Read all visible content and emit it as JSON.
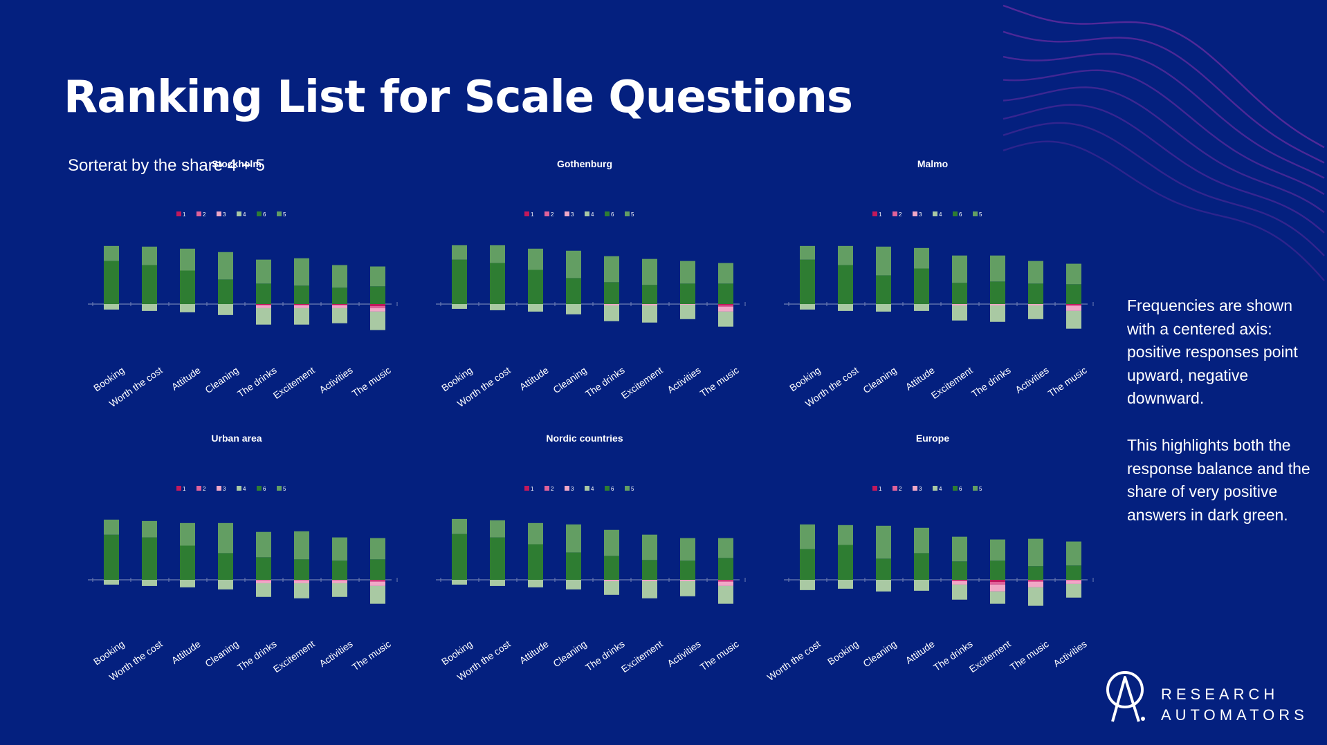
{
  "title": "Ranking List for Scale Questions",
  "subtitle": "Sorterat by the share 4 + 5",
  "side_note": {
    "p1": "Frequencies are shown with a centered axis: positive responses point upward, negative downward.",
    "p2": "This highlights both the response balance and the share of very positive answers in dark green."
  },
  "logo": {
    "line1": "RESEARCH",
    "line2": "AUTOMATORS"
  },
  "colors": {
    "background": "#04207f",
    "s1": "#c2185b",
    "s2": "#e0629a",
    "s3": "#f0a8c6",
    "s4": "#a9c9a3",
    "s6": "#2e7d32",
    "s5": "#639e63",
    "axis": "#6f7fb5",
    "wave": "#5a2a9c"
  },
  "chart_data": [
    {
      "type": "bar",
      "title": "Stockholm",
      "legend": [
        "1",
        "2",
        "3",
        "4",
        "6",
        "5"
      ],
      "categories": [
        "Booking",
        "Worth the cost",
        "Attitude",
        "Cleaning",
        "The drinks",
        "Excitement",
        "Activities",
        "The music"
      ],
      "series": [
        {
          "name": "6",
          "values": [
            63,
            57,
            49,
            36,
            30,
            27,
            24,
            26
          ]
        },
        {
          "name": "5",
          "values": [
            22,
            27,
            32,
            40,
            35,
            40,
            33,
            29
          ]
        },
        {
          "name": "4",
          "values": [
            -8,
            -10,
            -12,
            -16,
            -24,
            -24,
            -22,
            -27
          ]
        },
        {
          "name": "3",
          "values": [
            0,
            0,
            0,
            0,
            -4,
            -4,
            -4,
            -5
          ]
        },
        {
          "name": "2",
          "values": [
            0,
            0,
            0,
            0,
            -1,
            -1,
            -1,
            -3
          ]
        },
        {
          "name": "1",
          "values": [
            0,
            0,
            0,
            0,
            -1,
            -1,
            -1,
            -3
          ]
        }
      ]
    },
    {
      "type": "bar",
      "title": "Gothenburg",
      "legend": [
        "1",
        "2",
        "3",
        "4",
        "6",
        "5"
      ],
      "categories": [
        "Booking",
        "Worth the cost",
        "Attitude",
        "Cleaning",
        "The drinks",
        "Excitement",
        "Activities",
        "The music"
      ],
      "series": [
        {
          "name": "6",
          "values": [
            65,
            60,
            50,
            38,
            32,
            28,
            30,
            30
          ]
        },
        {
          "name": "5",
          "values": [
            21,
            26,
            31,
            40,
            38,
            38,
            33,
            30
          ]
        },
        {
          "name": "4",
          "values": [
            -7,
            -9,
            -11,
            -15,
            -23,
            -25,
            -21,
            -22
          ]
        },
        {
          "name": "3",
          "values": [
            0,
            0,
            0,
            0,
            -2,
            -2,
            -1,
            -7
          ]
        },
        {
          "name": "2",
          "values": [
            0,
            0,
            0,
            0,
            0,
            0,
            0,
            -2
          ]
        },
        {
          "name": "1",
          "values": [
            0,
            0,
            0,
            0,
            0,
            0,
            0,
            -2
          ]
        }
      ]
    },
    {
      "type": "bar",
      "title": "Malmo",
      "legend": [
        "1",
        "2",
        "3",
        "4",
        "6",
        "5"
      ],
      "categories": [
        "Booking",
        "Worth the cost",
        "Cleaning",
        "Attitude",
        "Excitement",
        "The drinks",
        "Activities",
        "The music"
      ],
      "series": [
        {
          "name": "6",
          "values": [
            65,
            57,
            42,
            52,
            31,
            33,
            30,
            29
          ]
        },
        {
          "name": "5",
          "values": [
            20,
            28,
            42,
            30,
            40,
            38,
            33,
            30
          ]
        },
        {
          "name": "4",
          "values": [
            -8,
            -10,
            -11,
            -10,
            -22,
            -24,
            -20,
            -26
          ]
        },
        {
          "name": "3",
          "values": [
            0,
            0,
            0,
            0,
            -2,
            -2,
            -2,
            -7
          ]
        },
        {
          "name": "2",
          "values": [
            0,
            0,
            0,
            0,
            0,
            0,
            0,
            -2
          ]
        },
        {
          "name": "1",
          "values": [
            0,
            0,
            0,
            0,
            0,
            0,
            0,
            -1
          ]
        }
      ]
    },
    {
      "type": "bar",
      "title": "Urban area",
      "legend": [
        "1",
        "2",
        "3",
        "4",
        "6",
        "5"
      ],
      "categories": [
        "Booking",
        "Worth the cost",
        "Attitude",
        "Cleaning",
        "The drinks",
        "Excitement",
        "Activities",
        "The music"
      ],
      "series": [
        {
          "name": "6",
          "values": [
            66,
            62,
            50,
            39,
            33,
            30,
            28,
            30
          ]
        },
        {
          "name": "5",
          "values": [
            22,
            24,
            33,
            44,
            37,
            41,
            34,
            31
          ]
        },
        {
          "name": "4",
          "values": [
            -7,
            -9,
            -11,
            -14,
            -20,
            -22,
            -20,
            -26
          ]
        },
        {
          "name": "3",
          "values": [
            0,
            0,
            0,
            0,
            -4,
            -4,
            -4,
            -6
          ]
        },
        {
          "name": "2",
          "values": [
            0,
            0,
            0,
            0,
            -1,
            -1,
            -1,
            -2
          ]
        },
        {
          "name": "1",
          "values": [
            0,
            0,
            0,
            0,
            0,
            0,
            0,
            -1
          ]
        }
      ]
    },
    {
      "type": "bar",
      "title": "Nordic countries",
      "legend": [
        "1",
        "2",
        "3",
        "4",
        "6",
        "5"
      ],
      "categories": [
        "Booking",
        "Worth the cost",
        "Attitude",
        "Cleaning",
        "The drinks",
        "Excitement",
        "Activities",
        "The music"
      ],
      "series": [
        {
          "name": "6",
          "values": [
            67,
            62,
            52,
            40,
            35,
            29,
            28,
            32
          ]
        },
        {
          "name": "5",
          "values": [
            22,
            25,
            31,
            41,
            38,
            37,
            33,
            29
          ]
        },
        {
          "name": "4",
          "values": [
            -7,
            -9,
            -11,
            -14,
            -20,
            -25,
            -22,
            -26
          ]
        },
        {
          "name": "3",
          "values": [
            0,
            0,
            0,
            0,
            -2,
            -2,
            -2,
            -6
          ]
        },
        {
          "name": "2",
          "values": [
            0,
            0,
            0,
            0,
            0,
            0,
            0,
            -2
          ]
        },
        {
          "name": "1",
          "values": [
            0,
            0,
            0,
            0,
            0,
            0,
            0,
            -1
          ]
        }
      ]
    },
    {
      "type": "bar",
      "title": "Europe",
      "legend": [
        "1",
        "2",
        "3",
        "4",
        "6",
        "5"
      ],
      "categories": [
        "Worth the cost",
        "Booking",
        "Cleaning",
        "Attitude",
        "The drinks",
        "Excitement",
        "The music",
        "Activities"
      ],
      "series": [
        {
          "name": "6",
          "values": [
            45,
            51,
            31,
            39,
            27,
            28,
            20,
            21
          ]
        },
        {
          "name": "5",
          "values": [
            36,
            29,
            48,
            37,
            36,
            31,
            40,
            35
          ]
        },
        {
          "name": "4",
          "values": [
            -15,
            -13,
            -17,
            -16,
            -22,
            -18,
            -27,
            -20
          ]
        },
        {
          "name": "3",
          "values": [
            0,
            0,
            0,
            0,
            -5,
            -10,
            -8,
            -5
          ]
        },
        {
          "name": "2",
          "values": [
            0,
            0,
            0,
            0,
            -1,
            -4,
            -2,
            -1
          ]
        },
        {
          "name": "1",
          "values": [
            0,
            0,
            0,
            0,
            -1,
            -3,
            -1,
            0
          ]
        }
      ]
    }
  ]
}
